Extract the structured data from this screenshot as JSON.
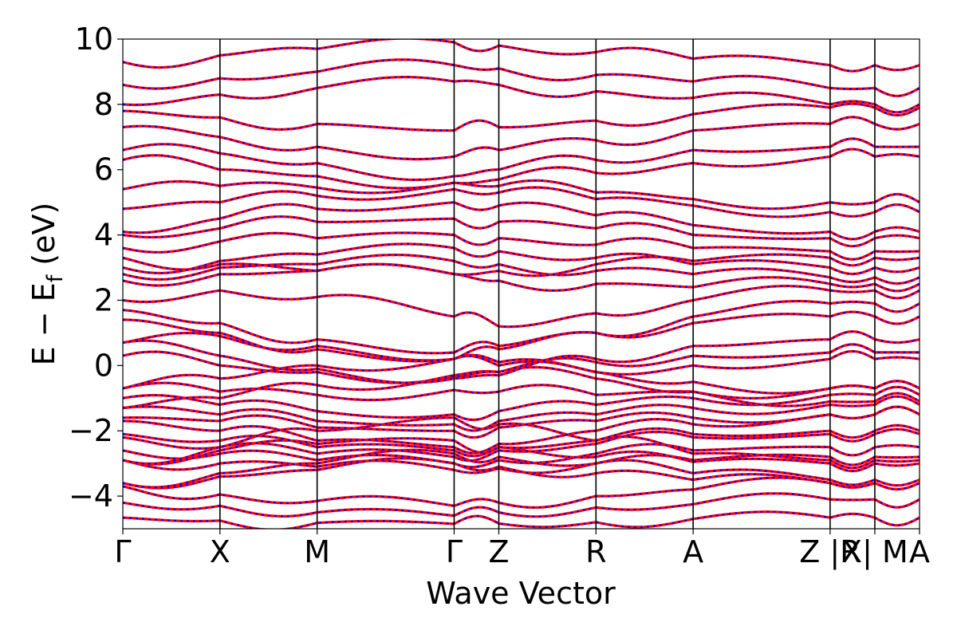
{
  "chart_data": {
    "type": "line",
    "title": "",
    "xlabel": "Wave Vector",
    "ylabel": {
      "main": "E − E",
      "sub": "f",
      "unit": " (eV)"
    },
    "ylim": [
      -5,
      10
    ],
    "yticks": [
      -4,
      -2,
      0,
      2,
      4,
      6,
      8,
      10
    ],
    "yticklabels": [
      "−4",
      "−2",
      "0",
      "2",
      "4",
      "6",
      "8",
      "10"
    ],
    "xlim": [
      0,
      8.2
    ],
    "kpoints": [
      {
        "label": "Γ",
        "x": 0.0
      },
      {
        "label": "X",
        "x": 1.0
      },
      {
        "label": "M",
        "x": 2.0
      },
      {
        "label": "Γ",
        "x": 3.41
      },
      {
        "label": "Z",
        "x": 3.87
      },
      {
        "label": "R",
        "x": 4.87
      },
      {
        "label": "A",
        "x": 5.87
      },
      {
        "label": "Z |R",
        "x": 7.28
      },
      {
        "label": "X| M",
        "x": 7.74
      },
      {
        "label": "A",
        "x": 8.2
      }
    ],
    "segment_boundaries": [
      1.0,
      2.0,
      3.41,
      3.87,
      4.87,
      5.87,
      7.28,
      7.74
    ],
    "legend": "none",
    "grid": false,
    "series": [
      {
        "style": "solid",
        "color": "#ff0000"
      },
      {
        "style": "dashed",
        "color": "#0000ff"
      }
    ],
    "bands": [
      {
        "segments": [
          [
            -4.66,
            -4.75,
            -4.82,
            -4.85,
            -4.84,
            -4.8,
            -4.7,
            -4.66
          ],
          [
            -3.7,
            -3.95,
            -4.15,
            -4.3,
            -4.2,
            -4.0,
            -3.8,
            -3.6
          ],
          [
            -2.9,
            -3.0,
            -3.1,
            -3.2,
            -3.15,
            -3.0,
            -2.9,
            -2.8
          ],
          [
            -1.7,
            -2.0,
            -2.3,
            -2.5,
            -2.4,
            -2.0,
            -1.8,
            -1.5
          ]
        ]
      },
      {
        "segments": [
          [
            -4.2,
            -4.3,
            -4.5,
            -4.6,
            -4.5,
            -4.35,
            -4.25,
            -4.1
          ],
          [
            -3.6,
            -3.4,
            -3.2,
            -3.0,
            -3.1,
            -3.3,
            -3.5,
            -3.6
          ],
          [
            -2.6,
            -2.7,
            -2.9,
            -3.0,
            -2.9,
            -2.7,
            -2.6,
            -2.5
          ],
          [
            -1.3,
            -1.5,
            -1.7,
            -1.8,
            -1.7,
            -1.5,
            -1.3,
            -1.2
          ]
        ]
      },
      {
        "segments": [
          [
            -3.6,
            -3.3,
            -3.0,
            -2.7,
            -2.8,
            -3.0,
            -3.3,
            -3.5
          ],
          [
            -2.9,
            -2.6,
            -2.4,
            -2.3,
            -2.5,
            -2.8,
            -2.95,
            -3.0
          ],
          [
            -2.2,
            -2.5,
            -2.7,
            -2.8,
            -2.6,
            -2.4,
            -2.2,
            -2.1
          ],
          [
            -1.0,
            -1.2,
            -1.4,
            -1.5,
            -1.4,
            -1.2,
            -1.0,
            -0.9
          ]
        ]
      },
      {
        "segments": [
          [
            -2.9,
            -2.5,
            -2.0,
            -1.6,
            -1.8,
            -2.3,
            -2.7,
            -2.9
          ],
          [
            -2.1,
            -2.3,
            -2.5,
            -2.6,
            -2.5,
            -2.3,
            -2.1,
            -2.0
          ],
          [
            -1.6,
            -1.7,
            -1.9,
            -2.0,
            -1.9,
            -1.7,
            -1.6,
            -1.5
          ],
          [
            -0.7,
            -0.8,
            -0.9,
            -0.75,
            -0.8,
            -0.9,
            -0.8,
            -0.7
          ]
        ]
      },
      {
        "segments": [
          [
            -1.3,
            -1.0,
            -0.6,
            -0.3,
            -0.2,
            -0.4,
            -0.8,
            -1.1
          ],
          [
            -0.7,
            -0.4,
            0.0,
            0.2,
            0.1,
            -0.2,
            -0.5,
            -0.7
          ],
          [
            0.3,
            0.0,
            -0.2,
            -0.35,
            -0.2,
            0.1,
            0.3,
            0.4
          ],
          [
            0.7,
            0.9,
            0.6,
            0.2,
            0.0,
            -0.2,
            0.0,
            0.2
          ]
        ]
      },
      {
        "segments": [
          [
            0.7,
            0.3,
            -0.1,
            -0.4,
            -0.3,
            0.2,
            0.6,
            0.8
          ],
          [
            1.4,
            1.0,
            0.5,
            0.2,
            0.5,
            1.0,
            1.3,
            1.5
          ],
          [
            1.7,
            1.3,
            0.8,
            0.4,
            0.6,
            1.0,
            1.5,
            1.9
          ],
          [
            2.0,
            2.3,
            2.1,
            1.5,
            1.2,
            1.6,
            2.0,
            2.3
          ]
        ]
      },
      {
        "segments": [
          [
            2.6,
            2.8,
            2.9,
            2.8,
            2.6,
            2.5,
            2.4,
            2.5
          ],
          [
            2.8,
            3.0,
            3.1,
            3.2,
            3.1,
            2.9,
            2.8,
            2.7
          ],
          [
            3.3,
            3.1,
            2.9,
            2.8,
            2.9,
            3.1,
            3.2,
            3.3
          ],
          [
            3.0,
            3.2,
            3.4,
            3.6,
            3.5,
            3.3,
            3.1,
            3.0
          ]
        ]
      },
      {
        "segments": [
          [
            3.6,
            3.8,
            3.9,
            4.0,
            3.9,
            3.7,
            3.6,
            3.5
          ],
          [
            4.0,
            4.2,
            4.4,
            4.5,
            4.4,
            4.2,
            4.0,
            3.9
          ],
          [
            4.1,
            4.5,
            4.8,
            5.0,
            4.9,
            4.6,
            4.3,
            4.1
          ],
          [
            4.8,
            5.0,
            5.2,
            5.4,
            5.3,
            5.1,
            4.9,
            4.7
          ]
        ]
      },
      {
        "segments": [
          [
            5.4,
            5.5,
            5.45,
            5.6,
            5.5,
            5.3,
            5.1,
            5.0
          ],
          [
            6.3,
            6.0,
            5.8,
            5.6,
            5.7,
            5.9,
            6.2,
            6.4
          ],
          [
            6.6,
            6.5,
            6.2,
            5.8,
            6.0,
            6.3,
            6.6,
            6.7
          ],
          [
            7.3,
            7.0,
            6.7,
            6.4,
            6.6,
            6.9,
            7.2,
            7.4
          ]
        ]
      },
      {
        "segments": [
          [
            7.8,
            7.6,
            7.4,
            7.2,
            7.3,
            7.5,
            7.7,
            7.9
          ],
          [
            8.0,
            8.3,
            8.5,
            8.7,
            8.6,
            8.4,
            8.2,
            8.0
          ],
          [
            8.6,
            8.8,
            9.0,
            9.2,
            9.1,
            8.9,
            8.7,
            8.5
          ],
          [
            9.3,
            9.5,
            9.7,
            9.9,
            9.8,
            9.6,
            9.4,
            9.2
          ]
        ]
      }
    ]
  }
}
